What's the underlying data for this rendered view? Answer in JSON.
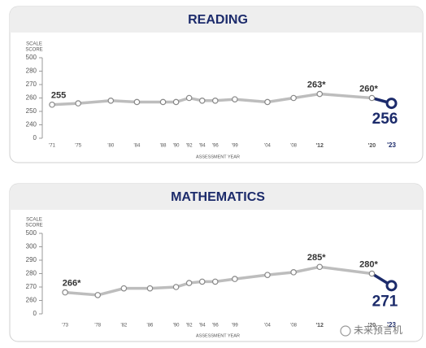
{
  "chart_data": [
    {
      "type": "line",
      "title": "READING",
      "y_label": [
        "SCALE",
        "SCORE"
      ],
      "x_label": "ASSESSMENT YEAR",
      "x": [
        1971,
        1975,
        1980,
        1984,
        1988,
        1990,
        1992,
        1994,
        1996,
        1999,
        2004,
        2008,
        2012,
        2020,
        2023
      ],
      "values": [
        255,
        256,
        258,
        257,
        257,
        257,
        260,
        258,
        258,
        259,
        257,
        260,
        263,
        260,
        256
      ],
      "value_labels": [
        "255",
        null,
        null,
        null,
        null,
        null,
        null,
        null,
        null,
        null,
        null,
        null,
        "263*",
        "260*",
        "256"
      ],
      "color": "#bdbdbd",
      "highlight_color": "#1c2b6b",
      "xlim": [
        1969.5,
        2025.3
      ],
      "xticks": [
        {
          "value": 1971,
          "label": "'71"
        },
        {
          "value": 1975,
          "label": "'75"
        },
        {
          "value": 1980,
          "label": "'80"
        },
        {
          "value": 1984,
          "label": "'84"
        },
        {
          "value": 1988,
          "label": "'88"
        },
        {
          "value": 1990,
          "label": "'90"
        },
        {
          "value": 1992,
          "label": "'92"
        },
        {
          "value": 1994,
          "label": "'94"
        },
        {
          "value": 1996,
          "label": "'96"
        },
        {
          "value": 1999,
          "label": "'99"
        },
        {
          "value": 2004,
          "label": "'04"
        },
        {
          "value": 2008,
          "label": "'08"
        },
        {
          "value": 2012,
          "label": "'12"
        },
        {
          "value": 2020,
          "label": "'20"
        },
        {
          "value": 2023,
          "label": "'23"
        }
      ],
      "ylim": [
        0,
        500
      ],
      "yticks": [
        0,
        240,
        250,
        260,
        270,
        280,
        500
      ],
      "grid": false
    },
    {
      "type": "line",
      "title": "MATHEMATICS",
      "y_label": [
        "SCALE",
        "SCORE"
      ],
      "x_label": "ASSESSMENT YEAR",
      "x": [
        1973,
        1978,
        1982,
        1986,
        1990,
        1992,
        1994,
        1996,
        1999,
        2004,
        2008,
        2012,
        2020,
        2023
      ],
      "values": [
        266,
        264,
        269,
        269,
        270,
        273,
        274,
        274,
        276,
        279,
        281,
        285,
        280,
        271
      ],
      "value_labels": [
        "266*",
        null,
        null,
        null,
        null,
        null,
        null,
        null,
        null,
        null,
        null,
        "285*",
        "280*",
        "271"
      ],
      "color": "#bdbdbd",
      "highlight_color": "#1c2b6b",
      "xlim": [
        1969.5,
        2025.3
      ],
      "xticks": [
        {
          "value": 1973,
          "label": "'73"
        },
        {
          "value": 1978,
          "label": "'78"
        },
        {
          "value": 1982,
          "label": "'82"
        },
        {
          "value": 1986,
          "label": "'86"
        },
        {
          "value": 1990,
          "label": "'90"
        },
        {
          "value": 1992,
          "label": "'92"
        },
        {
          "value": 1994,
          "label": "'94"
        },
        {
          "value": 1996,
          "label": "'96"
        },
        {
          "value": 1999,
          "label": "'99"
        },
        {
          "value": 2004,
          "label": "'04"
        },
        {
          "value": 2008,
          "label": "'08"
        },
        {
          "value": 2012,
          "label": "'12"
        },
        {
          "value": 2020,
          "label": "'20"
        },
        {
          "value": 2023,
          "label": "'23"
        }
      ],
      "ylim": [
        0,
        500
      ],
      "yticks": [
        0,
        260,
        270,
        280,
        290,
        300,
        500
      ],
      "grid": false
    }
  ],
  "watermark": "未来预言机"
}
